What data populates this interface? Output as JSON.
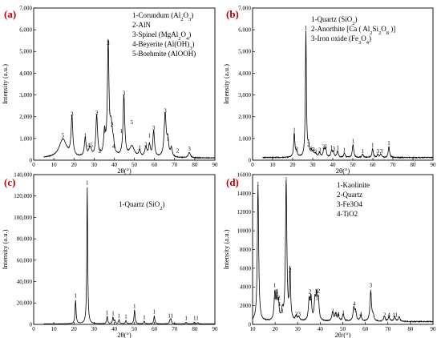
{
  "chart_data": [
    {
      "panel": "(a)",
      "type": "line",
      "xlabel": "2θ(°)",
      "ylabel": "Intensity (a.u.)",
      "xlim": [
        0,
        90
      ],
      "ylim": [
        0,
        7000
      ],
      "xticks": [
        0,
        10,
        20,
        30,
        40,
        50,
        60,
        70,
        80,
        90
      ],
      "yticks": [
        0,
        1000,
        2000,
        3000,
        4000,
        5000,
        6000,
        7000
      ],
      "ytick_labels": [
        "0",
        "1,000",
        "2,000",
        "3,000",
        "4,000",
        "5,000",
        "6,000",
        "7,000"
      ],
      "legend_lines": [
        [
          "1-Corundum (Al",
          "2",
          "O",
          "3",
          ")"
        ],
        [
          "2-AlN"
        ],
        [
          "3-Spinel (MgAl",
          "2",
          "O",
          "4",
          ")"
        ],
        [
          "4-Beyerite (Al(OH)",
          "3",
          ")"
        ],
        [
          "5-Boehmite (AlOOH)"
        ]
      ],
      "baseline": 100,
      "peaks": [
        [
          14.5,
          850,
          2.2
        ],
        [
          19,
          1800,
          0.5
        ],
        [
          25.6,
          850,
          0.5
        ],
        [
          28,
          420,
          0.8
        ],
        [
          31.3,
          1900,
          0.5
        ],
        [
          35.2,
          1050,
          0.5
        ],
        [
          37.0,
          5100,
          0.45
        ],
        [
          38.5,
          1350,
          0.8
        ],
        [
          39.6,
          350,
          0.5
        ],
        [
          44.8,
          2800,
          0.5
        ],
        [
          48.8,
          500,
          1.4
        ],
        [
          52.6,
          300,
          0.5
        ],
        [
          55.7,
          450,
          0.6
        ],
        [
          57.5,
          550,
          0.5
        ],
        [
          59.6,
          1200,
          0.5
        ],
        [
          65.3,
          2000,
          0.6
        ],
        [
          66.6,
          700,
          0.5
        ],
        [
          68.4,
          400,
          0.5
        ],
        [
          77.3,
          250,
          0.6
        ]
      ],
      "annotations": [
        {
          "x": 14.5,
          "y": 1050,
          "text": "5"
        },
        {
          "x": 19,
          "y": 2050,
          "text": "3"
        },
        {
          "x": 25.6,
          "y": 1050,
          "text": "1"
        },
        {
          "x": 28,
          "y": 600,
          "text": "45"
        },
        {
          "x": 31.3,
          "y": 2100,
          "text": "3"
        },
        {
          "x": 32.8,
          "y": 350,
          "text": "2"
        },
        {
          "x": 35.2,
          "y": 1250,
          "text": "1"
        },
        {
          "x": 37.0,
          "y": 5300,
          "text": "3"
        },
        {
          "x": 37.7,
          "y": 2150,
          "text": "1"
        },
        {
          "x": 38.9,
          "y": 1550,
          "text": "2"
        },
        {
          "x": 39.6,
          "y": 550,
          "text": "4"
        },
        {
          "x": 43.5,
          "y": 1250,
          "text": "1"
        },
        {
          "x": 44.8,
          "y": 3000,
          "text": "3"
        },
        {
          "x": 48.8,
          "y": 1650,
          "text": "5"
        },
        {
          "x": 52.6,
          "y": 500,
          "text": "1"
        },
        {
          "x": 55.7,
          "y": 650,
          "text": "3"
        },
        {
          "x": 57.5,
          "y": 1050,
          "text": "1"
        },
        {
          "x": 59.6,
          "y": 1400,
          "text": "3"
        },
        {
          "x": 65.3,
          "y": 2200,
          "text": "3"
        },
        {
          "x": 66.6,
          "y": 900,
          "text": "1"
        },
        {
          "x": 71.5,
          "y": 350,
          "text": "2"
        },
        {
          "x": 77.3,
          "y": 450,
          "text": "3"
        }
      ]
    },
    {
      "panel": "(b)",
      "type": "line",
      "xlabel": "2θ(°)",
      "ylabel": "Intensity (a.u.)",
      "xlim": [
        0,
        90
      ],
      "ylim": [
        0,
        7000
      ],
      "xticks": [
        0,
        10,
        20,
        30,
        40,
        50,
        60,
        70,
        80,
        90
      ],
      "yticks": [
        0,
        1000,
        2000,
        3000,
        4000,
        5000,
        6000,
        7000
      ],
      "ytick_labels": [
        "0",
        "1,000",
        "2,000",
        "3,000",
        "4,000",
        "5,000",
        "6,000",
        "7,000"
      ],
      "legend_lines": [
        [
          "1-Quartz (SiO",
          "2",
          ")"
        ],
        [
          "2-Anorthite [Ca ( Al",
          "2",
          "Si",
          "2",
          "O",
          "8",
          " )]"
        ],
        [
          "3-Iron oxide (Fe",
          "3",
          "O",
          "4",
          ")"
        ]
      ],
      "baseline": 120,
      "peaks": [
        [
          20.8,
          1100,
          0.35
        ],
        [
          21.9,
          250,
          0.5
        ],
        [
          26.6,
          5800,
          0.3
        ],
        [
          27.9,
          450,
          0.4
        ],
        [
          29.2,
          250,
          0.5
        ],
        [
          30.2,
          200,
          0.5
        ],
        [
          31.5,
          150,
          0.5
        ],
        [
          33.4,
          200,
          0.5
        ],
        [
          35.6,
          350,
          0.5
        ],
        [
          36.5,
          350,
          0.4
        ],
        [
          39.4,
          300,
          0.4
        ],
        [
          40.3,
          250,
          0.4
        ],
        [
          42.4,
          300,
          0.4
        ],
        [
          45.8,
          200,
          0.4
        ],
        [
          50.1,
          600,
          0.4
        ],
        [
          54.9,
          150,
          0.4
        ],
        [
          59.9,
          400,
          0.4
        ],
        [
          62.5,
          150,
          0.4
        ],
        [
          64.0,
          150,
          0.4
        ],
        [
          68.0,
          500,
          0.4
        ]
      ],
      "annotations": [
        {
          "x": 20.8,
          "y": 1300,
          "text": "1"
        },
        {
          "x": 22.1,
          "y": 430,
          "text": "2"
        },
        {
          "x": 26.6,
          "y": 6000,
          "text": "1"
        },
        {
          "x": 27.9,
          "y": 640,
          "text": "2"
        },
        {
          "x": 29.3,
          "y": 430,
          "text": "2"
        },
        {
          "x": 30.4,
          "y": 400,
          "text": "3"
        },
        {
          "x": 31.6,
          "y": 320,
          "text": "2"
        },
        {
          "x": 33.5,
          "y": 380,
          "text": "3"
        },
        {
          "x": 35.4,
          "y": 540,
          "text": "3"
        },
        {
          "x": 36.6,
          "y": 560,
          "text": "1"
        },
        {
          "x": 39.4,
          "y": 500,
          "text": "1"
        },
        {
          "x": 40.5,
          "y": 440,
          "text": "3"
        },
        {
          "x": 42.5,
          "y": 500,
          "text": "1"
        },
        {
          "x": 45.8,
          "y": 380,
          "text": "1"
        },
        {
          "x": 50.1,
          "y": 800,
          "text": "1"
        },
        {
          "x": 54.9,
          "y": 330,
          "text": "1"
        },
        {
          "x": 59.9,
          "y": 600,
          "text": "1"
        },
        {
          "x": 62.5,
          "y": 340,
          "text": "3"
        },
        {
          "x": 64.2,
          "y": 340,
          "text": "3"
        },
        {
          "x": 68.0,
          "y": 700,
          "text": "1"
        }
      ]
    },
    {
      "panel": "(c)",
      "type": "line",
      "xlabel": "2θ(°)",
      "ylabel": "Intensity (a.u.)",
      "xlim": [
        0,
        90
      ],
      "ylim": [
        0,
        140000
      ],
      "xticks": [
        0,
        10,
        20,
        30,
        40,
        50,
        60,
        70,
        80,
        90
      ],
      "yticks": [
        0,
        20000,
        40000,
        60000,
        80000,
        100000,
        120000,
        140000
      ],
      "ytick_labels": [
        "0",
        "20,000",
        "40,000",
        "60,000",
        "80,000",
        "100,000",
        "120,000",
        "140,000"
      ],
      "legend_lines": [
        [
          "1-Quartz (SiO",
          "2",
          ")"
        ]
      ],
      "baseline": 500,
      "peaks": [
        [
          20.8,
          22000,
          0.3
        ],
        [
          26.6,
          128000,
          0.25
        ],
        [
          36.5,
          7000,
          0.3
        ],
        [
          39.4,
          6000,
          0.3
        ],
        [
          40.3,
          3000,
          0.3
        ],
        [
          42.4,
          4000,
          0.3
        ],
        [
          45.8,
          3000,
          0.3
        ],
        [
          50.1,
          13000,
          0.3
        ],
        [
          54.9,
          2500,
          0.3
        ],
        [
          59.9,
          7500,
          0.3
        ],
        [
          67.7,
          3000,
          0.3
        ],
        [
          68.2,
          4000,
          0.3
        ],
        [
          75.7,
          1500,
          0.3
        ],
        [
          79.8,
          1500,
          0.3
        ],
        [
          81.5,
          1200,
          0.3
        ]
      ],
      "annotations": [
        {
          "x": 20.8,
          "y": 25000,
          "text": "1"
        },
        {
          "x": 26.6,
          "y": 130500,
          "text": "1"
        },
        {
          "x": 36.5,
          "y": 9500,
          "text": "1"
        },
        {
          "x": 39.4,
          "y": 8500,
          "text": "1"
        },
        {
          "x": 42.4,
          "y": 6500,
          "text": "1"
        },
        {
          "x": 45.8,
          "y": 5500,
          "text": "1"
        },
        {
          "x": 50.1,
          "y": 15500,
          "text": "1"
        },
        {
          "x": 54.9,
          "y": 5000,
          "text": "1"
        },
        {
          "x": 59.9,
          "y": 10000,
          "text": "1"
        },
        {
          "x": 68.0,
          "y": 6500,
          "text": "11"
        },
        {
          "x": 75.7,
          "y": 4000,
          "text": "1"
        },
        {
          "x": 80.6,
          "y": 4000,
          "text": "11"
        }
      ]
    },
    {
      "panel": "(d)",
      "type": "line",
      "xlabel": "2θ/(°)",
      "ylabel": "Intensity (a.u.)",
      "xlim": [
        10,
        90
      ],
      "ylim": [
        0,
        16000
      ],
      "xticks": [
        10,
        20,
        30,
        40,
        50,
        60,
        70,
        80,
        90
      ],
      "yticks": [
        0,
        2000,
        4000,
        6000,
        8000,
        10000,
        12000,
        14000,
        16000
      ],
      "ytick_labels": [
        "0",
        "2000",
        "4000",
        "6000",
        "8000",
        "10000",
        "12000",
        "14000",
        "16000"
      ],
      "legend_lines": [
        [
          "1-Kaolinite"
        ],
        [
          "2-Quartz"
        ],
        [
          "3-Fe3O4"
        ],
        [
          "4-TiO2"
        ]
      ],
      "baseline": 300,
      "peaks": [
        [
          12.4,
          14500,
          0.35
        ],
        [
          19.9,
          3000,
          0.4
        ],
        [
          20.8,
          2500,
          0.3
        ],
        [
          21.5,
          1800,
          0.3
        ],
        [
          23.2,
          1000,
          0.4
        ],
        [
          24.9,
          15000,
          0.35
        ],
        [
          26.6,
          5300,
          0.3
        ],
        [
          29.3,
          500,
          0.4
        ],
        [
          30.5,
          400,
          0.4
        ],
        [
          35.1,
          2200,
          0.4
        ],
        [
          35.9,
          2300,
          0.35
        ],
        [
          37.7,
          2200,
          0.4
        ],
        [
          38.5,
          2500,
          0.4
        ],
        [
          39.2,
          2000,
          0.35
        ],
        [
          45.5,
          1000,
          0.4
        ],
        [
          46.8,
          800,
          0.4
        ],
        [
          48.0,
          600,
          0.4
        ],
        [
          50.2,
          800,
          0.4
        ],
        [
          54.9,
          1400,
          0.4
        ],
        [
          55.7,
          1000,
          0.4
        ],
        [
          58.0,
          600,
          0.4
        ],
        [
          62.4,
          3200,
          0.4
        ],
        [
          63.5,
          600,
          0.4
        ],
        [
          68.5,
          500,
          0.4
        ],
        [
          70.5,
          500,
          0.4
        ],
        [
          73.0,
          500,
          0.4
        ],
        [
          75.0,
          500,
          0.4
        ]
      ],
      "annotations": [
        {
          "x": 12.4,
          "y": 14800,
          "text": "1"
        },
        {
          "x": 19.8,
          "y": 4000,
          "text": "1"
        },
        {
          "x": 20.9,
          "y": 3350,
          "text": "1"
        },
        {
          "x": 20.1,
          "y": 2650,
          "text": "4"
        },
        {
          "x": 21.7,
          "y": 2650,
          "text": "2"
        },
        {
          "x": 22.0,
          "y": 1950,
          "text": "1"
        },
        {
          "x": 23.2,
          "y": 1250,
          "text": "1"
        },
        {
          "x": 24.9,
          "y": 15300,
          "text": "1"
        },
        {
          "x": 26.6,
          "y": 5600,
          "text": "2"
        },
        {
          "x": 29.5,
          "y": 900,
          "text": "2"
        },
        {
          "x": 30.7,
          "y": 900,
          "text": "3"
        },
        {
          "x": 35.4,
          "y": 3300,
          "text": "2"
        },
        {
          "x": 35.7,
          "y": 2550,
          "text": "1"
        },
        {
          "x": 38.1,
          "y": 3400,
          "text": "1"
        },
        {
          "x": 39.3,
          "y": 3400,
          "text": "2"
        },
        {
          "x": 38.5,
          "y": 2600,
          "text": "1"
        },
        {
          "x": 45.6,
          "y": 1250,
          "text": "1"
        },
        {
          "x": 46.9,
          "y": 900,
          "text": "4"
        },
        {
          "x": 48.0,
          "y": 900,
          "text": "4"
        },
        {
          "x": 50.2,
          "y": 1050,
          "text": "1"
        },
        {
          "x": 55.0,
          "y": 2000,
          "text": "4"
        },
        {
          "x": 55.7,
          "y": 1300,
          "text": "1"
        },
        {
          "x": 58.0,
          "y": 900,
          "text": "4"
        },
        {
          "x": 62.4,
          "y": 4000,
          "text": "3"
        },
        {
          "x": 62.4,
          "y": 3300,
          "text": "1"
        },
        {
          "x": 68.5,
          "y": 800,
          "text": "2"
        },
        {
          "x": 70.5,
          "y": 800,
          "text": "4"
        },
        {
          "x": 73.2,
          "y": 800,
          "text": "11"
        }
      ]
    }
  ]
}
